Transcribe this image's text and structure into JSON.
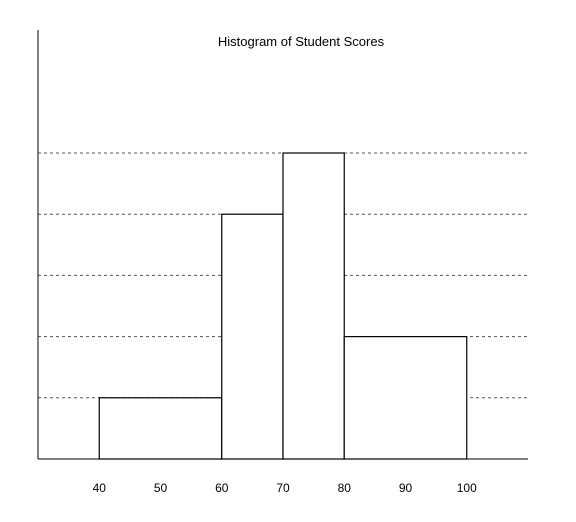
{
  "chart_data": {
    "type": "bar",
    "title": "Histogram of Student Scores",
    "xlabel": "",
    "ylabel": "",
    "xlim": [
      30,
      110
    ],
    "ylim": [
      0,
      5
    ],
    "x_ticks": [
      40,
      50,
      60,
      70,
      80,
      90,
      100
    ],
    "y_gridlines": [
      1,
      2,
      3,
      4,
      5
    ],
    "grid": true,
    "grid_style": "dashed",
    "bins": [
      {
        "from": 40,
        "to": 60,
        "value": 1
      },
      {
        "from": 60,
        "to": 70,
        "value": 4
      },
      {
        "from": 70,
        "to": 80,
        "value": 5
      },
      {
        "from": 80,
        "to": 100,
        "value": 2
      }
    ],
    "colors": {
      "bar_fill": "#ffffff",
      "bar_stroke": "#000000",
      "grid": "#555555",
      "axis": "#000000"
    }
  }
}
